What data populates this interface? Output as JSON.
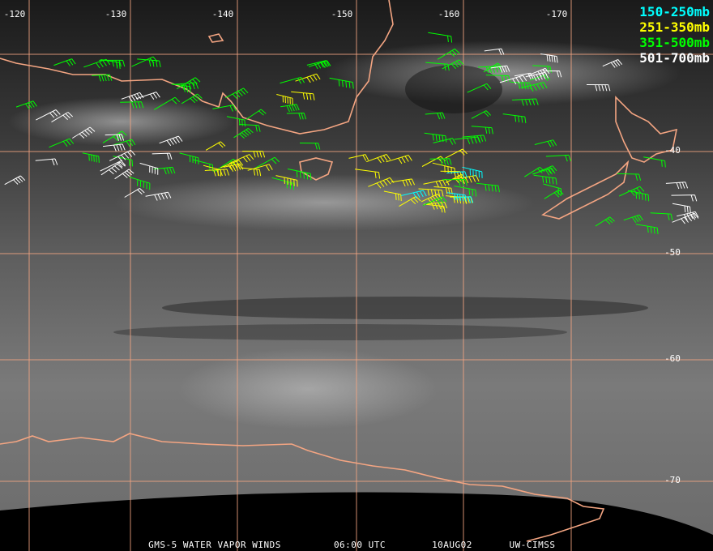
{
  "map": {
    "longitude_labels": [
      -120,
      -130,
      -140,
      -150,
      -160,
      -170
    ],
    "latitude_labels": [
      -40,
      -50,
      -60,
      -70
    ],
    "legend": [
      {
        "label": "150-250mb",
        "color": "#00ffff"
      },
      {
        "label": "251-350mb",
        "color": "#ffff00"
      },
      {
        "label": "351-500mb",
        "color": "#00ff00"
      },
      {
        "label": "501-700mb",
        "color": "#ffffff"
      }
    ],
    "footer": [
      "GMS-5 WATER VAPOR WINDS",
      "06:00 UTC",
      "10AUG02",
      "UW-CIMSS"
    ]
  }
}
